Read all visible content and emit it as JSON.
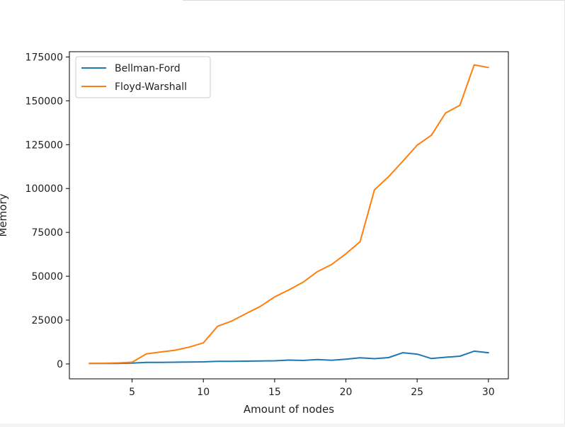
{
  "chart_data": {
    "type": "line",
    "title": "",
    "xlabel": "Amount of nodes",
    "ylabel": "Memory",
    "xlim": [
      0.6,
      31.4
    ],
    "ylim": [
      -8500,
      178000
    ],
    "xticks": [
      5,
      10,
      15,
      20,
      25,
      30
    ],
    "xtick_labels": [
      "5",
      "10",
      "15",
      "20",
      "25",
      "30"
    ],
    "yticks": [
      0,
      25000,
      50000,
      75000,
      100000,
      125000,
      150000,
      175000
    ],
    "ytick_labels": [
      "0",
      "25000",
      "50000",
      "75000",
      "100000",
      "125000",
      "150000",
      "175000"
    ],
    "grid": false,
    "legend_position": "top-left",
    "x": [
      2,
      3,
      4,
      5,
      6,
      7,
      8,
      9,
      10,
      11,
      12,
      13,
      14,
      15,
      16,
      17,
      18,
      19,
      20,
      21,
      22,
      23,
      24,
      25,
      26,
      27,
      28,
      29,
      30
    ],
    "series": [
      {
        "name": "Bellman-Ford",
        "color": "#1f77b4",
        "values": [
          300,
          300,
          300,
          500,
          900,
          900,
          1000,
          1100,
          1200,
          1500,
          1500,
          1600,
          1700,
          1800,
          2200,
          2000,
          2500,
          2100,
          2700,
          3500,
          3000,
          3600,
          6400,
          5600,
          3100,
          3800,
          4400,
          7300,
          6400
        ]
      },
      {
        "name": "Floyd-Warshall",
        "color": "#ff7f0e",
        "values": [
          300,
          400,
          600,
          1000,
          5700,
          6800,
          7800,
          9600,
          12000,
          21500,
          24500,
          28700,
          32800,
          38200,
          42200,
          46600,
          52600,
          56700,
          62800,
          69700,
          99200,
          106800,
          115600,
          124700,
          130400,
          143100,
          147500,
          170500,
          169000
        ]
      }
    ]
  }
}
